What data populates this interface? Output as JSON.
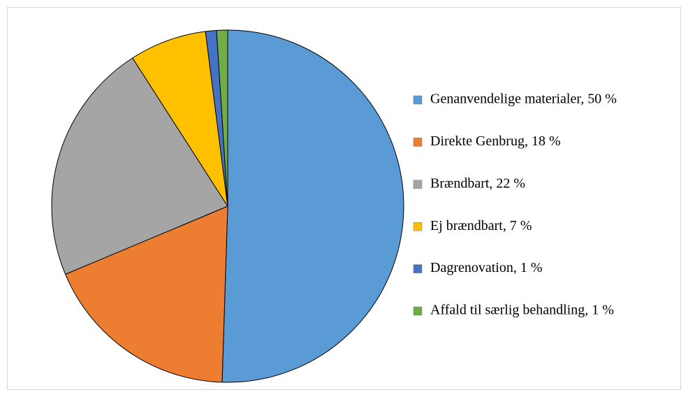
{
  "chart_data": {
    "type": "pie",
    "categories": [
      "Genanvendelige materialer, 50 %",
      "Direkte Genbrug, 18 %",
      "Brændbart, 22 %",
      "Ej brændbart, 7 %",
      "Dagrenovation, 1 %",
      "Affald til særlig behandling, 1 %"
    ],
    "values": [
      50,
      18,
      22,
      7,
      1,
      1
    ],
    "colors": [
      "#5b9bd5",
      "#ed7d31",
      "#a5a5a5",
      "#ffc000",
      "#4472c4",
      "#70ad47"
    ],
    "legend": "right"
  }
}
